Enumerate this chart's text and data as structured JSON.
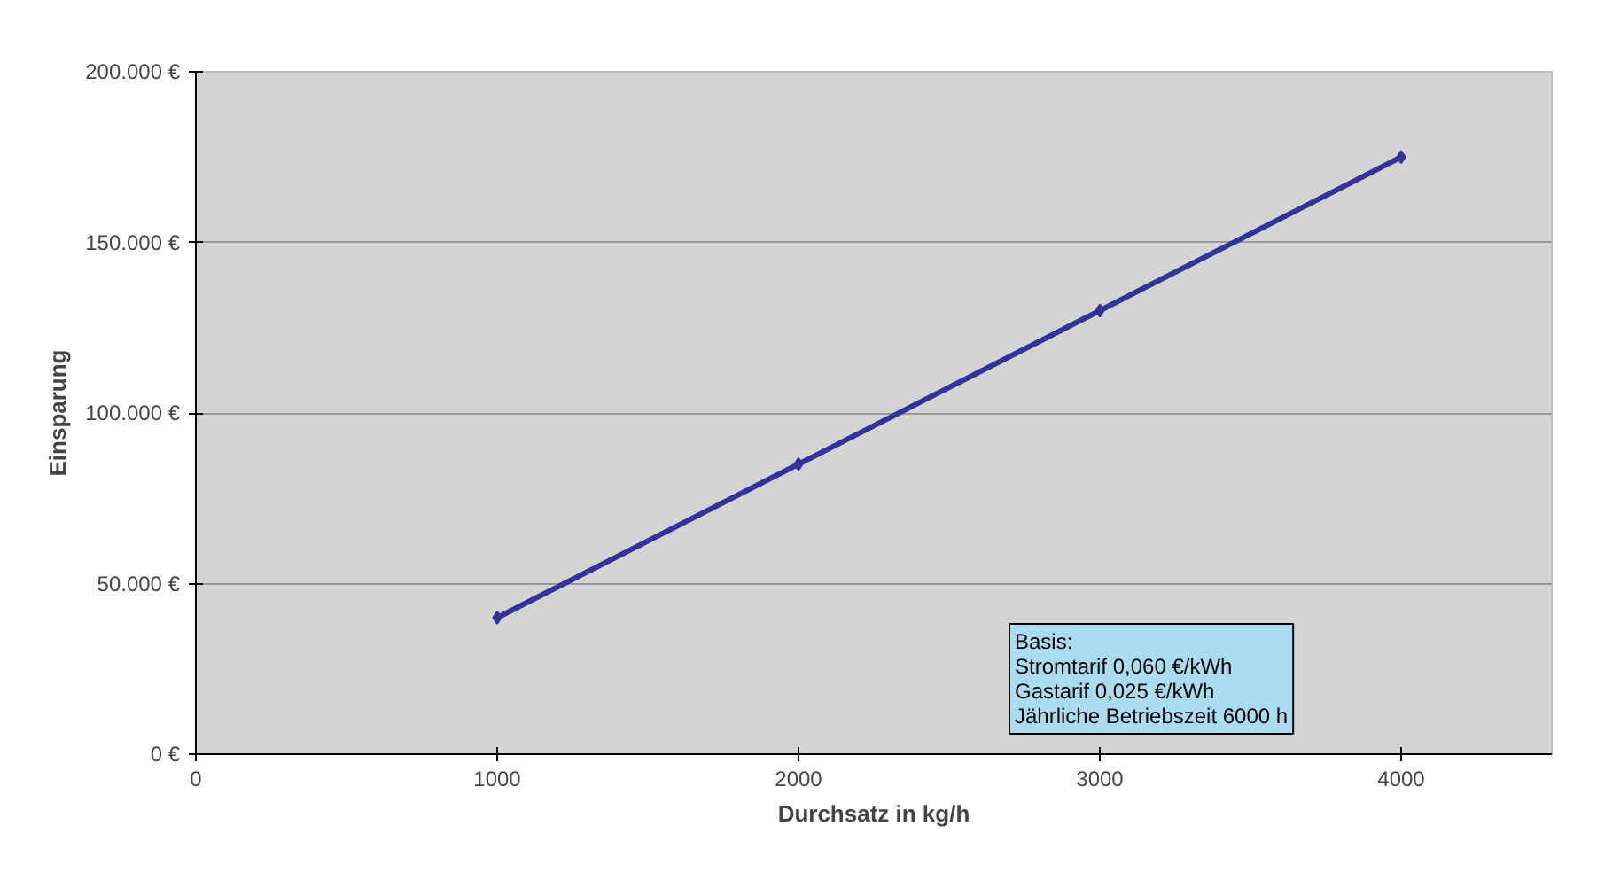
{
  "chart_data": {
    "type": "line",
    "xlabel": "Durchsatz in kg/h",
    "ylabel": "Einsparung",
    "x": [
      1000,
      2000,
      3000,
      4000
    ],
    "series": [
      {
        "color": "#333399",
        "values": [
          40000,
          85000,
          130000,
          175000
        ]
      }
    ],
    "xlim": [
      0,
      4500
    ],
    "xticks": [
      0,
      1000,
      2000,
      3000,
      4000
    ],
    "ylim": [
      0,
      200000
    ],
    "yticks": [
      {
        "value": 0,
        "label": "0 €"
      },
      {
        "value": 50000,
        "label": "50.000 €"
      },
      {
        "value": 100000,
        "label": "100.000 €"
      },
      {
        "value": 150000,
        "label": "150.000 €"
      },
      {
        "value": 200000,
        "label": "200.000 €"
      }
    ],
    "grid": "y",
    "marker": "diamond",
    "line_style": "solid",
    "annotations": [
      "Basis:",
      "Stromtarif 0,060 €/kWh",
      "Gastarif    0,025 €/kWh",
      "Jährliche Betriebszeit 6000 h"
    ]
  }
}
